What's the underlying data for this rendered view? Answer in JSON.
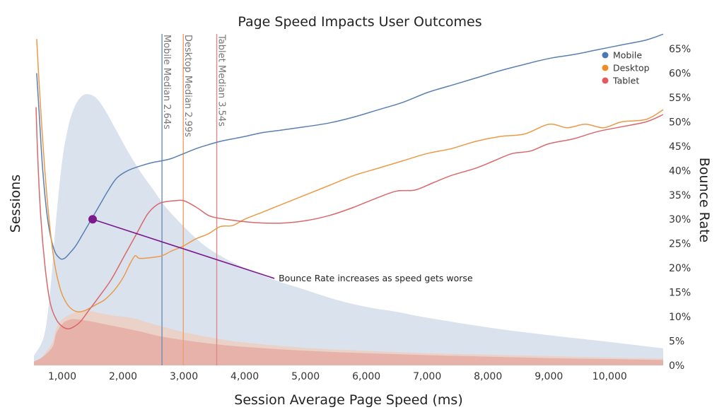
{
  "chart_data": {
    "type": "line",
    "title": "Page Speed Impacts User Outcomes",
    "xlabel": "Session Average Page Speed (ms)",
    "ylabel_left": "Sessions",
    "ylabel_right": "Bounce Rate",
    "xlim": [
      535,
      10880
    ],
    "ylim": [
      0,
      65
    ],
    "x_ticks": [
      1000,
      2000,
      3000,
      4000,
      5000,
      6000,
      7000,
      8000,
      9000,
      10000
    ],
    "x_tick_labels": [
      "1,000",
      "2,000",
      "3,000",
      "4,000",
      "5,000",
      "6,000",
      "7,000",
      "8,000",
      "9,000",
      "10,000"
    ],
    "y_ticks": [
      0,
      5,
      10,
      15,
      20,
      25,
      30,
      35,
      40,
      45,
      50,
      55,
      60,
      65
    ],
    "y_tick_labels": [
      "0%",
      "5%",
      "10%",
      "15%",
      "20%",
      "25%",
      "30%",
      "35%",
      "40%",
      "45%",
      "50%",
      "55%",
      "60%",
      "65%"
    ],
    "grid": false,
    "legend": {
      "placement": "top-right",
      "entries": [
        {
          "name": "Mobile",
          "color": "#4a78b0"
        },
        {
          "name": "Desktop",
          "color": "#ef8c2a"
        },
        {
          "name": "Tablet",
          "color": "#e05a5e"
        }
      ]
    },
    "series": [
      {
        "name": "Mobile",
        "color": "#5a7fb0",
        "x": [
          580,
          620,
          680,
          760,
          860,
          960,
          1040,
          1120,
          1220,
          1340,
          1480,
          1620,
          1760,
          1900,
          2080,
          2300,
          2500,
          2640,
          2800,
          3000,
          3200,
          3400,
          3600,
          3800,
          4000,
          4300,
          4600,
          5000,
          5400,
          5800,
          6200,
          6600,
          7000,
          7400,
          7800,
          8200,
          8600,
          9000,
          9400,
          9800,
          10200,
          10600,
          10880
        ],
        "values": [
          60,
          52,
          40,
          30,
          24,
          22,
          22,
          23,
          24.5,
          27,
          30,
          33,
          36,
          38.5,
          40,
          41,
          41.7,
          42,
          42.5,
          43.5,
          44.5,
          45.3,
          46,
          46.5,
          47,
          47.8,
          48.3,
          49,
          49.8,
          51,
          52.5,
          54,
          56,
          57.5,
          59,
          60.5,
          61.8,
          63,
          63.8,
          64.8,
          65.8,
          66.8,
          68
        ]
      },
      {
        "name": "Desktop",
        "color": "#eb9a48",
        "x": [
          580,
          620,
          680,
          760,
          860,
          960,
          1060,
          1160,
          1260,
          1360,
          1460,
          1560,
          1700,
          1860,
          2000,
          2120,
          2200,
          2260,
          2360,
          2500,
          2640,
          2800,
          2990,
          3200,
          3400,
          3600,
          3800,
          4000,
          4300,
          4600,
          5000,
          5400,
          5800,
          6200,
          6600,
          7000,
          7400,
          7800,
          8200,
          8600,
          9000,
          9300,
          9600,
          9900,
          10200,
          10600,
          10880
        ],
        "values": [
          67,
          58,
          46,
          33,
          22,
          16,
          13,
          11.5,
          11,
          11.2,
          11.8,
          12.5,
          13.5,
          15.5,
          18,
          21,
          22.5,
          22,
          22,
          22.2,
          22.5,
          23.5,
          24.5,
          26,
          27,
          28.5,
          28.7,
          30,
          31.5,
          33,
          35,
          37,
          39,
          40.5,
          42,
          43.5,
          44.5,
          46,
          47,
          47.5,
          49.5,
          48.8,
          49.5,
          48.8,
          50,
          50.5,
          52.5
        ]
      },
      {
        "name": "Tablet",
        "color": "#d9686a",
        "x": [
          570,
          600,
          650,
          720,
          800,
          900,
          1000,
          1100,
          1200,
          1300,
          1450,
          1600,
          1800,
          2000,
          2200,
          2400,
          2560,
          2700,
          2850,
          3000,
          3200,
          3400,
          3540,
          3800,
          4200,
          4600,
          5000,
          5400,
          5800,
          6200,
          6500,
          6800,
          7100,
          7400,
          7800,
          8100,
          8400,
          8700,
          9000,
          9400,
          9800,
          10200,
          10600,
          10880
        ],
        "values": [
          53,
          42,
          30,
          20,
          13,
          9.5,
          8,
          7.5,
          8,
          9,
          11.5,
          14,
          17.5,
          22,
          26.5,
          31,
          33,
          33.6,
          33.8,
          33.8,
          32.5,
          30.8,
          30.3,
          29.8,
          29.3,
          29.2,
          29.7,
          30.8,
          32.5,
          34.5,
          35.8,
          36,
          37.5,
          39,
          40.5,
          42,
          43.5,
          44,
          45.5,
          46.5,
          48,
          49,
          50,
          51.5
        ]
      }
    ],
    "session_distributions": [
      {
        "name": "Mobile sessions",
        "color": "#dae2ee",
        "x": [
          535,
          700,
          800,
          900,
          1000,
          1100,
          1200,
          1300,
          1400,
          1550,
          1700,
          1900,
          2100,
          2300,
          2500,
          2700,
          3000,
          3300,
          3600,
          4000,
          4500,
          5000,
          5500,
          6000,
          6500,
          7000,
          8000,
          9000,
          10000,
          10880
        ],
        "values": [
          2,
          6,
          15,
          30,
          42,
          49,
          53,
          55,
          55.7,
          55,
          52.5,
          48,
          43.5,
          39.5,
          36,
          32.5,
          28.5,
          25,
          22.5,
          20,
          17.5,
          15.5,
          13.5,
          12,
          11,
          9.8,
          7.8,
          6.2,
          4.8,
          3.5
        ]
      },
      {
        "name": "Desktop sessions",
        "color": "#ead2c8",
        "x": [
          535,
          650,
          750,
          850,
          900,
          1000,
          1200,
          1400,
          1600,
          1800,
          2000,
          2200,
          2400,
          2700,
          3000,
          3500,
          4000,
          5000,
          6000,
          7000,
          8000,
          9000,
          10000,
          10880
        ],
        "values": [
          0.8,
          1.5,
          3,
          5,
          7.5,
          9.5,
          10.8,
          11.2,
          10.8,
          10.3,
          10,
          9.6,
          8.8,
          7.8,
          6.8,
          5.6,
          4.7,
          3.6,
          3,
          2.5,
          2.2,
          1.9,
          1.6,
          1.4
        ]
      },
      {
        "name": "Tablet sessions",
        "color": "#e6b2aa",
        "x": [
          535,
          650,
          750,
          850,
          900,
          1000,
          1100,
          1200,
          1400,
          1600,
          1800,
          2000,
          2300,
          2600,
          3000,
          3500,
          4000,
          5000,
          6000,
          7000,
          8000,
          9000,
          10000,
          10880
        ],
        "values": [
          0.8,
          1.5,
          2.5,
          4,
          6.5,
          8.5,
          9.3,
          9.5,
          9.2,
          8.7,
          8.2,
          7.7,
          6.9,
          6,
          5.2,
          4.4,
          3.8,
          3,
          2.5,
          2.1,
          1.8,
          1.5,
          1.3,
          1.1
        ]
      }
    ],
    "medians": [
      {
        "label": "Mobile Median 2.64s",
        "x": 2640,
        "color": "#6f8db5"
      },
      {
        "label": "Desktop Median 2.99s",
        "x": 2990,
        "color": "#e9a070"
      },
      {
        "label": "Tablet Median 3.54s",
        "x": 3540,
        "color": "#dc8a8a"
      }
    ],
    "annotation": {
      "text": "Bounce Rate increases as speed gets worse",
      "point": {
        "x": 1500,
        "y": 30
      },
      "target": {
        "x": 4000,
        "y": 18
      },
      "color": "#7b1a8c"
    }
  }
}
